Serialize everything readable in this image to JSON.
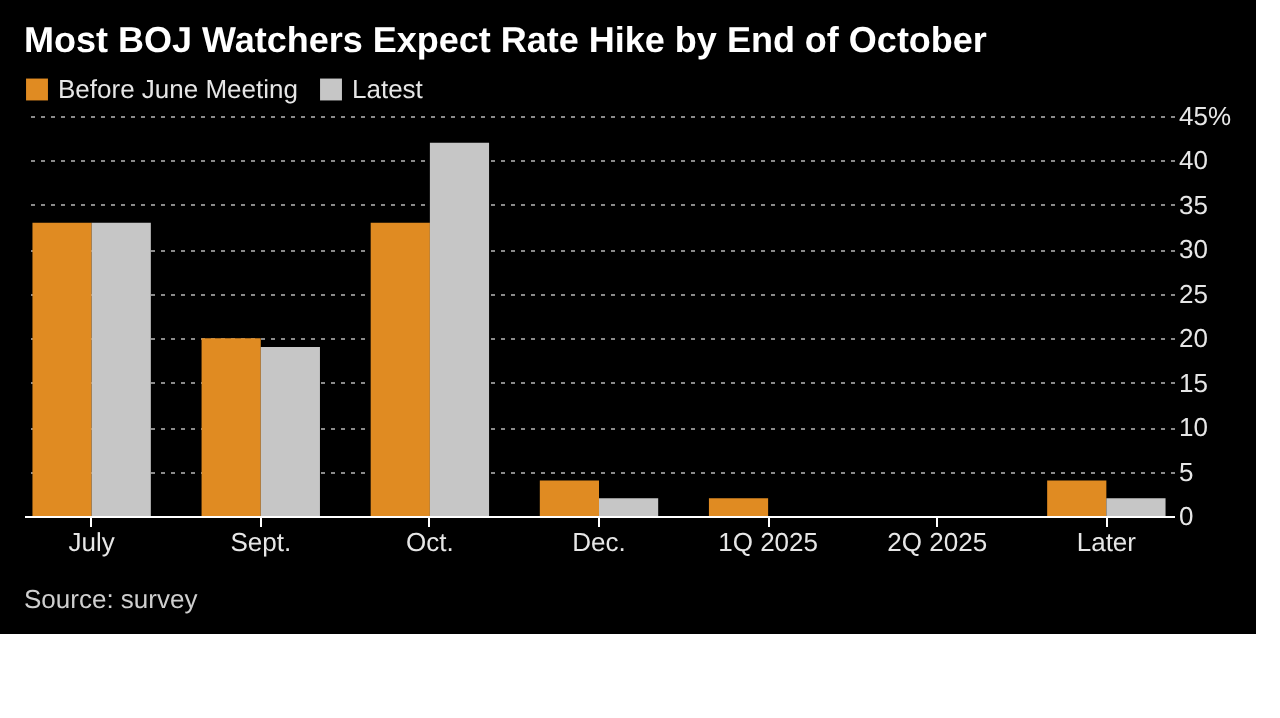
{
  "chart_data": {
    "type": "bar",
    "title": "Most BOJ Watchers Expect Rate Hike by End of October",
    "categories": [
      "July",
      "Sept.",
      "Oct.",
      "Dec.",
      "1Q 2025",
      "2Q 2025",
      "Later"
    ],
    "series": [
      {
        "name": "Before June Meeting",
        "color": "#e08b22",
        "values": [
          33,
          20,
          33,
          4,
          2,
          0,
          4
        ]
      },
      {
        "name": "Latest",
        "color": "#c6c6c6",
        "values": [
          33,
          19,
          42,
          2,
          0,
          0,
          2
        ]
      }
    ],
    "ylim": [
      0,
      45
    ],
    "yticks": [
      0,
      5,
      10,
      15,
      20,
      25,
      30,
      35,
      40,
      {
        "value": 45,
        "label": "45%"
      }
    ],
    "grid": "y",
    "legend": "top left",
    "annotations": [
      "Source: survey"
    ]
  }
}
